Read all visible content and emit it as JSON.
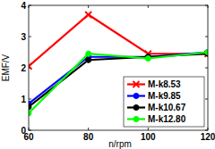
{
  "chart_data": {
    "type": "line",
    "x_label": "n/rpm",
    "y_label": "EMF/V",
    "x": [
      60,
      80,
      100,
      120
    ],
    "series": [
      {
        "name": "M-k8.53",
        "color": "#ff0000",
        "marker": "x",
        "values": [
          2.05,
          3.7,
          2.45,
          2.45
        ]
      },
      {
        "name": "M-k9.85",
        "color": "#0000ff",
        "marker": "o",
        "values": [
          0.85,
          2.35,
          2.35,
          2.5
        ]
      },
      {
        "name": "M-k10.67",
        "color": "#000000",
        "marker": "o",
        "values": [
          0.75,
          2.25,
          2.35,
          2.45
        ]
      },
      {
        "name": "M-k12.80",
        "color": "#00ff00",
        "marker": "o",
        "values": [
          0.55,
          2.45,
          2.3,
          2.5
        ]
      }
    ],
    "xlim": [
      60,
      120
    ],
    "xticks": [
      60,
      80,
      100,
      120
    ],
    "ylim": [
      0,
      4
    ],
    "yticks": [
      0,
      1,
      2,
      3,
      4
    ],
    "grid": false,
    "legend": "lower right"
  }
}
